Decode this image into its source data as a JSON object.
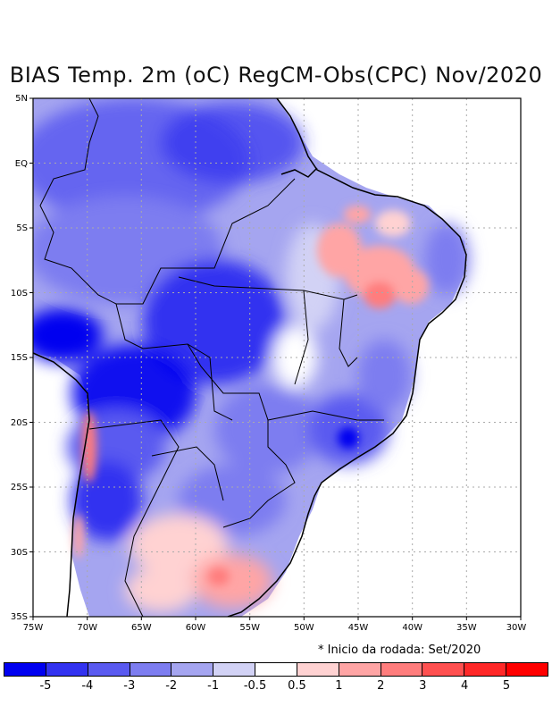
{
  "map": {
    "title": "BIAS Temp. 2m (oC) RegCM-Obs(CPC) Nov/2020",
    "lat_labels": [
      "5N",
      "EQ",
      "5S",
      "10S",
      "15S",
      "20S",
      "25S",
      "30S",
      "35S"
    ],
    "lon_labels": [
      "75W",
      "70W",
      "65W",
      "60W",
      "55W",
      "50W",
      "45W",
      "40W",
      "35W",
      "30W"
    ],
    "note": "* Inicio da rodada: Set/2020",
    "legend": {
      "colors": [
        "#0000f0",
        "#3232f0",
        "#5a5af0",
        "#7d7df0",
        "#a5a5f0",
        "#d2d2f5",
        "#ffffff",
        "#ffd2d2",
        "#ffa5a5",
        "#ff7d7d",
        "#ff5050",
        "#ff2828",
        "#ff0000"
      ],
      "labels": [
        "-5",
        "-4",
        "-3",
        "-2",
        "-1",
        "-0.5",
        "0.5",
        "1",
        "2",
        "3",
        "4",
        "5"
      ]
    }
  }
}
